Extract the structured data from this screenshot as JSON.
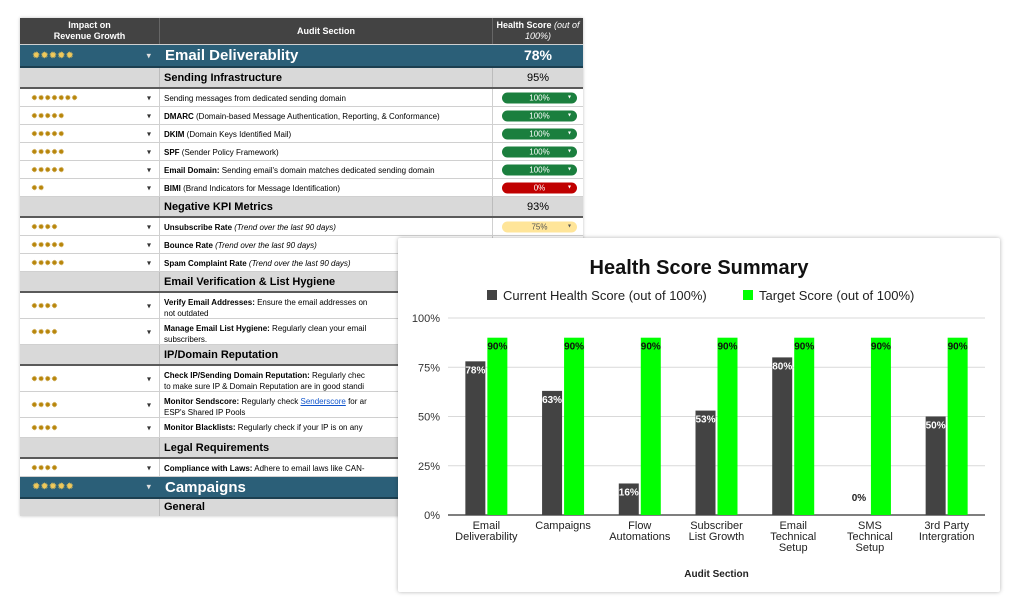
{
  "sheet": {
    "headers": {
      "impact": "Impact on Revenue Growth",
      "section": "Audit Section",
      "score_main": "Health Score",
      "score_sub": "(out of 100%)"
    },
    "section_email": {
      "title": "Email Deliverablity",
      "score": "78%",
      "stars": "✹✹✹✹✹"
    },
    "sending_infra": {
      "title": "Sending Infrastructure",
      "score": "95%"
    },
    "items_infra": [
      {
        "stars": "✹✹✹✹✹✹✹",
        "bold": "",
        "text": "Sending messages from dedicated sending domain",
        "score": "100%",
        "color": "#1b7f3e"
      },
      {
        "stars": "✹✹✹✹✹",
        "bold": "DMARC",
        "text": " (Domain-based Message Authentication, Reporting, & Conformance)",
        "score": "100%",
        "color": "#1b7f3e"
      },
      {
        "stars": "✹✹✹✹✹",
        "bold": "DKIM",
        "text": " (Domain Keys Identified Mail)",
        "score": "100%",
        "color": "#1b7f3e"
      },
      {
        "stars": "✹✹✹✹✹",
        "bold": "SPF",
        "text": " (Sender Policy Framework)",
        "score": "100%",
        "color": "#1b7f3e"
      },
      {
        "stars": "✹✹✹✹✹",
        "bold": "Email Domain:",
        "text": " Sending email's domain matches dedicated sending domain",
        "score": "100%",
        "color": "#1b7f3e"
      },
      {
        "stars": "✹✹",
        "bold": "BIMI",
        "text": " (Brand Indicators for Message Identification)",
        "score": "0%",
        "color": "#c00000"
      }
    ],
    "neg_kpi": {
      "title": "Negative KPI Metrics",
      "score": "93%"
    },
    "items_kpi": [
      {
        "stars": "✹✹✹✹",
        "bold": "Unsubscribe Rate",
        "italic": " (Trend over the last 90 days)",
        "score": "75%"
      },
      {
        "stars": "✹✹✹✹✹",
        "bold": "Bounce Rate",
        "italic": " (Trend over the last 90 days)"
      },
      {
        "stars": "✹✹✹✹✹",
        "bold": "Spam Complaint Rate",
        "italic": " (Trend over the last 90 days)"
      }
    ],
    "verification": {
      "title": "Email Verification & List Hygiene"
    },
    "items_verif": [
      {
        "stars": "✹✹✹✹",
        "bold": "Verify Email Addresses:",
        "text": " Ensure the email addresses on",
        "line2": "not outdated"
      },
      {
        "stars": "✹✹✹✹",
        "bold": "Manage Email List Hygiene:",
        "text": " Regularly clean your email",
        "line2": "subscribers."
      }
    ],
    "ip_rep": {
      "title": "IP/Domain Reputation"
    },
    "items_ip": [
      {
        "stars": "✹✹✹✹",
        "bold": "Check IP/Sending Domain Reputation:",
        "text": " Regularly chec",
        "line2": "to make sure IP & Domain Reputation are in good standi"
      },
      {
        "stars": "✹✹✹✹",
        "bold": "Monitor Sendscore:",
        "text": " Regularly check ",
        "link": "Senderscore",
        "text2": " for ar",
        "line2": "ESP's Shared IP Pools"
      },
      {
        "stars": "✹✹✹✹",
        "bold": "Monitor Blacklists:",
        "text": " Regularly check if your IP is on any"
      }
    ],
    "legal": {
      "title": "Legal Requirements"
    },
    "items_legal": [
      {
        "stars": "✹✹✹✹",
        "bold": "Compliance with Laws:",
        "text": " Adhere to email laws like CAN-"
      }
    ],
    "section_campaigns": {
      "title": "Campaigns",
      "stars": "✹✹✹✹✹"
    },
    "general": {
      "title": "General"
    },
    "dropdown_glyph": "▾"
  },
  "chart_data": {
    "type": "bar",
    "title": "Health Score Summary",
    "xlabel": "Audit Section",
    "ylabel": "",
    "ylim": [
      0,
      100
    ],
    "yticks": [
      "0%",
      "25%",
      "50%",
      "75%",
      "100%"
    ],
    "categories": [
      [
        "Email",
        "Deliverability"
      ],
      [
        "Campaigns"
      ],
      [
        "Flow",
        "Automations"
      ],
      [
        "Subscriber",
        "List Growth"
      ],
      [
        "Email",
        "Technical",
        "Setup"
      ],
      [
        "SMS",
        "Technical",
        "Setup"
      ],
      [
        "3rd Party",
        "Intergration"
      ]
    ],
    "series": [
      {
        "name": "Current Health Score (out of 100%)",
        "color": "#434343",
        "values": [
          78,
          63,
          16,
          53,
          80,
          0,
          50
        ],
        "labels": [
          "78%",
          "63%",
          "16%",
          "53%",
          "80%",
          "0%",
          "50%"
        ]
      },
      {
        "name": "Target Score (out of 100%)",
        "color": "#00ff00",
        "values": [
          90,
          90,
          90,
          90,
          90,
          90,
          90
        ],
        "labels": [
          "90%",
          "90%",
          "90%",
          "90%",
          "90%",
          "90%",
          "90%"
        ]
      }
    ],
    "legend": "top"
  }
}
